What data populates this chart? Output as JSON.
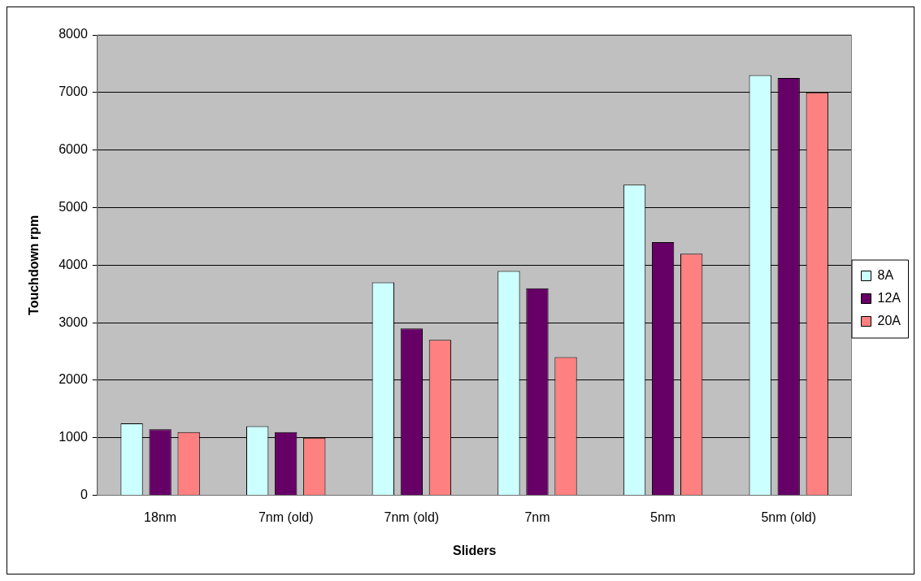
{
  "chart_data": {
    "type": "bar",
    "xlabel": "Sliders",
    "ylabel": "Touchdown rpm",
    "categories": [
      "18nm",
      "7nm (old)",
      "7nm (old)",
      "7nm",
      "5nm",
      "5nm (old)"
    ],
    "series": [
      {
        "name": "8A",
        "color": "#ccffff",
        "values": [
          1250,
          1200,
          3700,
          3900,
          5400,
          7300
        ]
      },
      {
        "name": "12A",
        "color": "#660066",
        "values": [
          1150,
          1100,
          2900,
          3600,
          4400,
          7250
        ]
      },
      {
        "name": "20A",
        "color": "#ff8080",
        "values": [
          1100,
          1000,
          2700,
          2400,
          4200,
          7000
        ]
      }
    ],
    "ylim": [
      0,
      8000
    ],
    "yticks": [
      0,
      1000,
      2000,
      3000,
      4000,
      5000,
      6000,
      7000,
      8000
    ],
    "grid": "y",
    "legend": "right"
  }
}
